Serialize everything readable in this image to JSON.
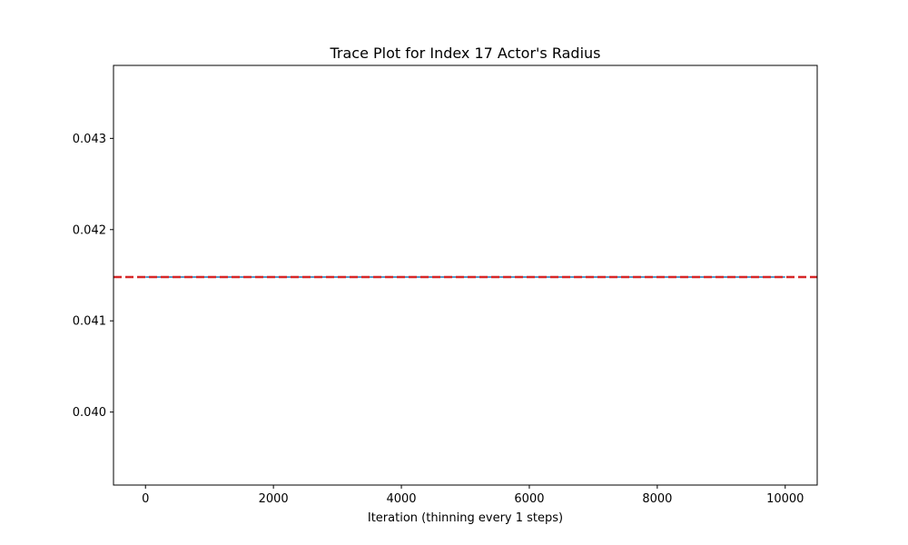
{
  "chart_data": {
    "type": "line",
    "title": "Trace Plot for Index 17 Actor's Radius",
    "xlabel": "Iteration (thinning every 1 steps)",
    "ylabel": "",
    "xlim": [
      -500,
      10500
    ],
    "ylim": [
      0.0392,
      0.0438
    ],
    "xticks": [
      0,
      2000,
      4000,
      6000,
      8000,
      10000
    ],
    "xtick_labels": [
      "0",
      "2000",
      "4000",
      "6000",
      "8000",
      "10000"
    ],
    "yticks": [
      0.04,
      0.041,
      0.042,
      0.043
    ],
    "ytick_labels": [
      "0.040",
      "0.041",
      "0.042",
      "0.043"
    ],
    "grid": false,
    "series": [
      {
        "kind": "trace",
        "color": "#1f77b4",
        "x": [
          0,
          9999
        ],
        "y": [
          0.04148,
          0.04148
        ]
      },
      {
        "kind": "reference-line",
        "style": "dashed",
        "color": "#d62728",
        "x": [
          -500,
          10500
        ],
        "y": [
          0.04148,
          0.04148
        ]
      }
    ]
  }
}
